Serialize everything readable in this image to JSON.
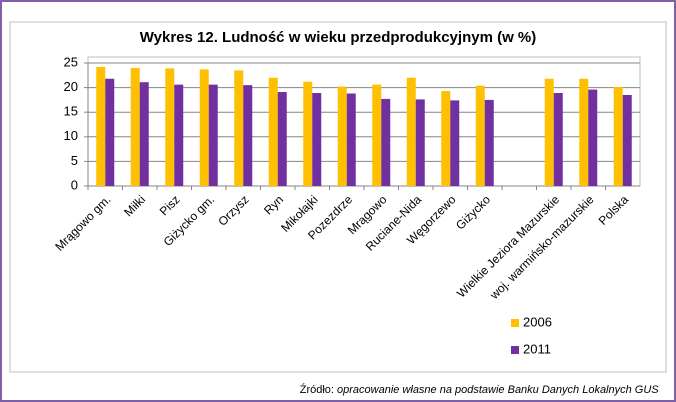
{
  "chart_data": {
    "type": "bar",
    "title": "Wykres 12. Ludność w wieku przedprodukcyjnym (w %)",
    "categories": [
      "Mrągowo gm.",
      "Miłki",
      "Pisz",
      "Giżycko gm.",
      "Orzysz",
      "Ryn",
      "Mikołajki",
      "Pozezdrze",
      "Mrągowo",
      "Ruciane-Nida",
      "Węgorzewo",
      "Giżycko",
      null,
      "Wielkie Jeziora Mazurskie",
      "woj. warmińsko-mazurskie",
      "Polska"
    ],
    "series": [
      {
        "name": "2006",
        "color": "#ffc000",
        "values": [
          24.2,
          24.0,
          23.9,
          23.7,
          23.5,
          22.0,
          21.2,
          20.2,
          20.6,
          22.0,
          19.3,
          20.4,
          null,
          21.8,
          21.8,
          20.1
        ]
      },
      {
        "name": "2011",
        "color": "#7030a0",
        "values": [
          21.8,
          21.1,
          20.6,
          20.6,
          20.5,
          19.1,
          18.9,
          18.8,
          17.7,
          17.6,
          17.4,
          17.5,
          null,
          18.9,
          19.6,
          18.5
        ]
      }
    ],
    "ylim": [
      0,
      25
    ],
    "yticks": [
      0,
      5,
      10,
      15,
      20,
      25
    ],
    "grid": true,
    "legend": "bottom-right"
  },
  "source": {
    "prefix": "Źródło:",
    "text": "opracowanie własne na podstawie Banku Danych Lokalnych GUS"
  }
}
